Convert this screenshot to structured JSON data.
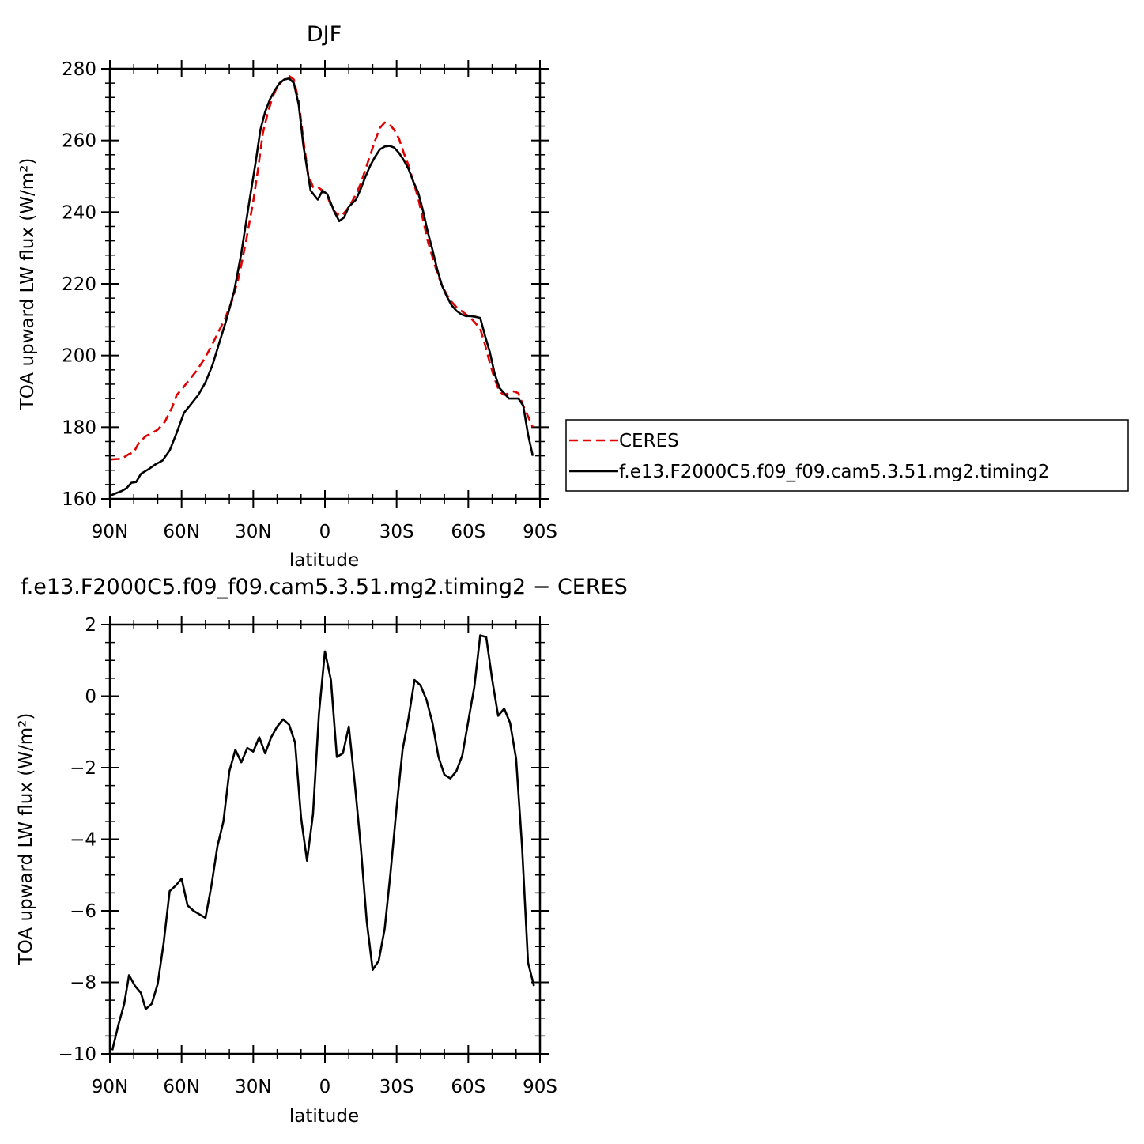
{
  "chart_data": [
    {
      "type": "line",
      "title": "DJF",
      "xlabel": "latitude",
      "ylabel": "TOA upward LW flux (W/m²)",
      "xlim": [
        -90,
        90
      ],
      "ylim": [
        160,
        280
      ],
      "x_ticks": [
        {
          "value": -90,
          "label": "90N"
        },
        {
          "value": -60,
          "label": "60N"
        },
        {
          "value": -30,
          "label": "30N"
        },
        {
          "value": 0,
          "label": "0"
        },
        {
          "value": 30,
          "label": "30S"
        },
        {
          "value": 60,
          "label": "60S"
        },
        {
          "value": 90,
          "label": "90S"
        }
      ],
      "y_ticks": [
        160,
        180,
        200,
        220,
        240,
        260,
        280
      ],
      "legend_position": "right",
      "series": [
        {
          "name": "CERES",
          "color": "#e00000",
          "dash": "dashed",
          "points": [
            [
              -89.5,
              171.0
            ],
            [
              -85,
              171.2
            ],
            [
              -82,
              172.5
            ],
            [
              -80,
              173.0
            ],
            [
              -78,
              175.5
            ],
            [
              -75,
              177.5
            ],
            [
              -72,
              178.5
            ],
            [
              -70,
              179.3
            ],
            [
              -67,
              181.5
            ],
            [
              -64,
              185.5
            ],
            [
              -62,
              189.0
            ],
            [
              -60,
              190.5
            ],
            [
              -57,
              193.0
            ],
            [
              -54,
              195.5
            ],
            [
              -51,
              198.5
            ],
            [
              -48,
              202.0
            ],
            [
              -45,
              206.0
            ],
            [
              -42,
              210.0
            ],
            [
              -39,
              215.0
            ],
            [
              -36,
              222.0
            ],
            [
              -33,
              232.0
            ],
            [
              -30,
              243.0
            ],
            [
              -28,
              252.0
            ],
            [
              -26,
              262.0
            ],
            [
              -24,
              267.5
            ],
            [
              -22,
              272.0
            ],
            [
              -20,
              275.0
            ],
            [
              -18,
              276.5
            ],
            [
              -16,
              277.5
            ],
            [
              -15,
              278.0
            ],
            [
              -13,
              277.0
            ],
            [
              -11,
              271.0
            ],
            [
              -9,
              260.0
            ],
            [
              -7,
              250.5
            ],
            [
              -5,
              247.0
            ],
            [
              -3,
              247.0
            ],
            [
              -1,
              246.0
            ],
            [
              1,
              244.5
            ],
            [
              3,
              241.0
            ],
            [
              5,
              239.5
            ],
            [
              7,
              239.0
            ],
            [
              9,
              240.5
            ],
            [
              11,
              242.5
            ],
            [
              13,
              245.0
            ],
            [
              15,
              248.0
            ],
            [
              17,
              252.0
            ],
            [
              19,
              256.0
            ],
            [
              21,
              260.0
            ],
            [
              23,
              263.5
            ],
            [
              25,
              265.0
            ],
            [
              27,
              264.5
            ],
            [
              29,
              263.0
            ],
            [
              31,
              260.5
            ],
            [
              33,
              256.5
            ],
            [
              35,
              253.0
            ],
            [
              37,
              248.5
            ],
            [
              39,
              244.0
            ],
            [
              41,
              238.0
            ],
            [
              43,
              232.0
            ],
            [
              45,
              227.5
            ],
            [
              47,
              223.0
            ],
            [
              49,
              219.5
            ],
            [
              51,
              217.0
            ],
            [
              53,
              215.0
            ],
            [
              55,
              213.5
            ],
            [
              57,
              212.5
            ],
            [
              59,
              211.5
            ],
            [
              61,
              210.5
            ],
            [
              63,
              209.0
            ],
            [
              65,
              207.5
            ],
            [
              67,
              203.0
            ],
            [
              69,
              198.0
            ],
            [
              71,
              193.5
            ],
            [
              73,
              190.0
            ],
            [
              75,
              189.0
            ],
            [
              77,
              189.5
            ],
            [
              79,
              190.0
            ],
            [
              81,
              189.5
            ],
            [
              83,
              186.0
            ],
            [
              85,
              183.0
            ],
            [
              87,
              180.0
            ]
          ]
        },
        {
          "name": "f.e13.F2000C5.f09_f09.cam5.3.51.mg2.timing2",
          "color": "#000000",
          "dash": "solid",
          "points": [
            [
              -89.5,
              161.0
            ],
            [
              -87,
              161.7
            ],
            [
              -85,
              162.2
            ],
            [
              -83,
              163.0
            ],
            [
              -81,
              164.5
            ],
            [
              -79,
              164.7
            ],
            [
              -77,
              167.0
            ],
            [
              -74,
              168.2
            ],
            [
              -71,
              169.6
            ],
            [
              -68,
              170.7
            ],
            [
              -65,
              173.5
            ],
            [
              -62,
              178.5
            ],
            [
              -59,
              184.0
            ],
            [
              -56,
              186.5
            ],
            [
              -53,
              189.0
            ],
            [
              -50,
              192.5
            ],
            [
              -47,
              197.5
            ],
            [
              -44,
              204.0
            ],
            [
              -41,
              210.5
            ],
            [
              -38,
              218.0
            ],
            [
              -35,
              228.5
            ],
            [
              -32,
              241.5
            ],
            [
              -29,
              254.0
            ],
            [
              -27,
              263.0
            ],
            [
              -25,
              268.0
            ],
            [
              -23,
              271.5
            ],
            [
              -21,
              274.0
            ],
            [
              -19,
              276.0
            ],
            [
              -17,
              277.0
            ],
            [
              -15,
              277.3
            ],
            [
              -13,
              276.0
            ],
            [
              -11,
              270.0
            ],
            [
              -9,
              258.5
            ],
            [
              -6,
              246.0
            ],
            [
              -3,
              243.5
            ],
            [
              -1,
              246.0
            ],
            [
              1,
              245.0
            ],
            [
              4,
              240.0
            ],
            [
              6,
              237.5
            ],
            [
              8,
              238.5
            ],
            [
              10,
              241.5
            ],
            [
              13,
              243.5
            ],
            [
              15,
              246.5
            ],
            [
              17,
              250.0
            ],
            [
              19,
              253.0
            ],
            [
              21,
              255.5
            ],
            [
              23,
              257.5
            ],
            [
              25,
              258.3
            ],
            [
              27,
              258.5
            ],
            [
              29,
              258.0
            ],
            [
              31,
              256.5
            ],
            [
              33,
              254.5
            ],
            [
              35,
              252.0
            ],
            [
              37,
              248.5
            ],
            [
              39,
              245.5
            ],
            [
              41,
              240.5
            ],
            [
              43,
              234.5
            ],
            [
              45,
              229.5
            ],
            [
              47,
              224.0
            ],
            [
              49,
              219.5
            ],
            [
              51,
              216.5
            ],
            [
              53,
              214.0
            ],
            [
              55,
              212.5
            ],
            [
              57,
              211.5
            ],
            [
              59,
              211.0
            ],
            [
              61,
              211.0
            ],
            [
              63,
              210.8
            ],
            [
              65,
              210.5
            ],
            [
              67,
              205.5
            ],
            [
              69,
              201.0
            ],
            [
              71,
              195.0
            ],
            [
              73,
              191.0
            ],
            [
              75,
              189.5
            ],
            [
              77,
              188.0
            ],
            [
              79,
              188.0
            ],
            [
              81,
              188.0
            ],
            [
              83,
              186.0
            ],
            [
              85,
              178.0
            ],
            [
              87,
              172.0
            ]
          ]
        }
      ]
    },
    {
      "type": "line",
      "title": "f.e13.F2000C5.f09_f09.cam5.3.51.mg2.timing2 − CERES",
      "xlabel": "latitude",
      "ylabel": "TOA upward LW flux (W/m²)",
      "xlim": [
        -90,
        90
      ],
      "ylim": [
        -10,
        2
      ],
      "x_ticks": [
        {
          "value": -90,
          "label": "90N"
        },
        {
          "value": -60,
          "label": "60N"
        },
        {
          "value": -30,
          "label": "30N"
        },
        {
          "value": 0,
          "label": "0"
        },
        {
          "value": 30,
          "label": "30S"
        },
        {
          "value": 60,
          "label": "60S"
        },
        {
          "value": 90,
          "label": "90S"
        }
      ],
      "y_ticks": [
        -10,
        -8,
        -6,
        -4,
        -2,
        0,
        2
      ],
      "series": [
        {
          "color": "#000000",
          "dash": "solid",
          "points": [
            [
              -89,
              -9.9
            ],
            [
              -86.5,
              -9.2
            ],
            [
              -84,
              -8.6
            ],
            [
              -82,
              -7.8
            ],
            [
              -79.5,
              -8.1
            ],
            [
              -77,
              -8.3
            ],
            [
              -75,
              -8.75
            ],
            [
              -72.5,
              -8.6
            ],
            [
              -70,
              -8.05
            ],
            [
              -67.5,
              -6.9
            ],
            [
              -65,
              -5.45
            ],
            [
              -62.5,
              -5.3
            ],
            [
              -60,
              -5.1
            ],
            [
              -57.5,
              -5.85
            ],
            [
              -55,
              -6.0
            ],
            [
              -52.5,
              -6.1
            ],
            [
              -50,
              -6.2
            ],
            [
              -47.5,
              -5.3
            ],
            [
              -45,
              -4.2
            ],
            [
              -42.5,
              -3.5
            ],
            [
              -40,
              -2.1
            ],
            [
              -37.5,
              -1.5
            ],
            [
              -35,
              -1.85
            ],
            [
              -32.5,
              -1.45
            ],
            [
              -30,
              -1.55
            ],
            [
              -27.5,
              -1.15
            ],
            [
              -25,
              -1.6
            ],
            [
              -22.5,
              -1.15
            ],
            [
              -20,
              -0.85
            ],
            [
              -17.5,
              -0.65
            ],
            [
              -15,
              -0.8
            ],
            [
              -12.5,
              -1.3
            ],
            [
              -10,
              -3.4
            ],
            [
              -7.5,
              -4.6
            ],
            [
              -5,
              -3.3
            ],
            [
              -2.5,
              -0.5
            ],
            [
              0,
              1.25
            ],
            [
              2.5,
              0.45
            ],
            [
              5,
              -1.7
            ],
            [
              7.5,
              -1.6
            ],
            [
              10,
              -0.85
            ],
            [
              12.5,
              -2.45
            ],
            [
              15,
              -4.2
            ],
            [
              17.5,
              -6.3
            ],
            [
              20,
              -7.65
            ],
            [
              22.5,
              -7.4
            ],
            [
              25,
              -6.5
            ],
            [
              27.5,
              -4.9
            ],
            [
              30,
              -3.1
            ],
            [
              32.5,
              -1.5
            ],
            [
              35,
              -0.6
            ],
            [
              37.5,
              0.45
            ],
            [
              40,
              0.3
            ],
            [
              42.5,
              -0.1
            ],
            [
              45,
              -0.75
            ],
            [
              47.5,
              -1.7
            ],
            [
              50,
              -2.2
            ],
            [
              52.5,
              -2.3
            ],
            [
              55,
              -2.1
            ],
            [
              57.5,
              -1.65
            ],
            [
              60,
              -0.7
            ],
            [
              62.5,
              0.25
            ],
            [
              65,
              1.7
            ],
            [
              67.5,
              1.65
            ],
            [
              70,
              0.45
            ],
            [
              72.5,
              -0.55
            ],
            [
              75,
              -0.35
            ],
            [
              77.5,
              -0.75
            ],
            [
              80,
              -1.75
            ],
            [
              82.5,
              -4.2
            ],
            [
              85,
              -7.45
            ],
            [
              87.5,
              -8.1
            ]
          ]
        }
      ]
    }
  ]
}
